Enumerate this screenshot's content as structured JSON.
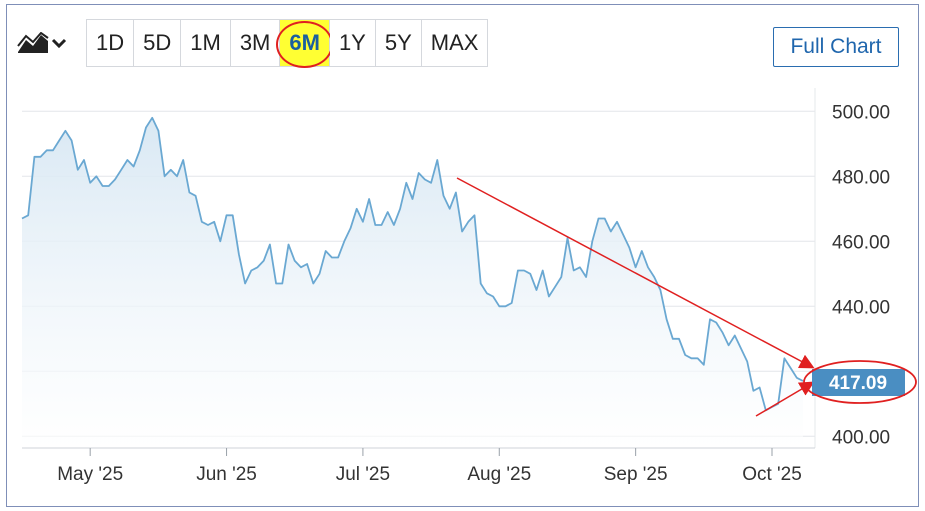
{
  "toolbar": {
    "chart_type_icon": "area-chart-icon",
    "dropdown_icon": "chevron-down-icon",
    "ranges": [
      "1D",
      "5D",
      "1M",
      "3M",
      "6M",
      "1Y",
      "5Y",
      "MAX"
    ],
    "active_range": "6M",
    "full_chart_label": "Full Chart"
  },
  "colors": {
    "line": "#6aa8d2",
    "fill_top": "#d7e7f3",
    "grid": "#e3e6ea",
    "price_tag": "#4a8ec2",
    "annotation": "#e02020",
    "highlight": "#ffff33"
  },
  "chart_data": {
    "type": "area",
    "x_ticks": [
      "May '25",
      "Jun '25",
      "Jul '25",
      "Aug '25",
      "Sep '25",
      "Oct '25"
    ],
    "y_ticks": [
      "500.00",
      "480.00",
      "460.00",
      "440.00",
      "400.00"
    ],
    "ylim": [
      397,
      505
    ],
    "grid": true,
    "last_price": "417.09",
    "series": [
      {
        "values": [
          467,
          468,
          486,
          486,
          488,
          488,
          491,
          494,
          491,
          482,
          485,
          478,
          480,
          477,
          477,
          479,
          482,
          485,
          483,
          488,
          495,
          498,
          494,
          480,
          482,
          480,
          485,
          475,
          474,
          466,
          465,
          466,
          460,
          468,
          468,
          456,
          447,
          451,
          452,
          454,
          459,
          447,
          447,
          459,
          454,
          452,
          453,
          447,
          450,
          457,
          455,
          455,
          460,
          464,
          470,
          466,
          473,
          465,
          465,
          469,
          465,
          470,
          478,
          473,
          481,
          479,
          478,
          485,
          474,
          470,
          475,
          463,
          466,
          468,
          447,
          444,
          443,
          440,
          440,
          441,
          451,
          451,
          450,
          445,
          451,
          443,
          446,
          449,
          461,
          451,
          452,
          449,
          460,
          467,
          467,
          463,
          466,
          462,
          458,
          452,
          457,
          452,
          449,
          445,
          436,
          430,
          430,
          425,
          424,
          424,
          422,
          436,
          435,
          432,
          428,
          431,
          427,
          423,
          414,
          415,
          408,
          409,
          410,
          424,
          421,
          418,
          417
        ]
      }
    ]
  }
}
